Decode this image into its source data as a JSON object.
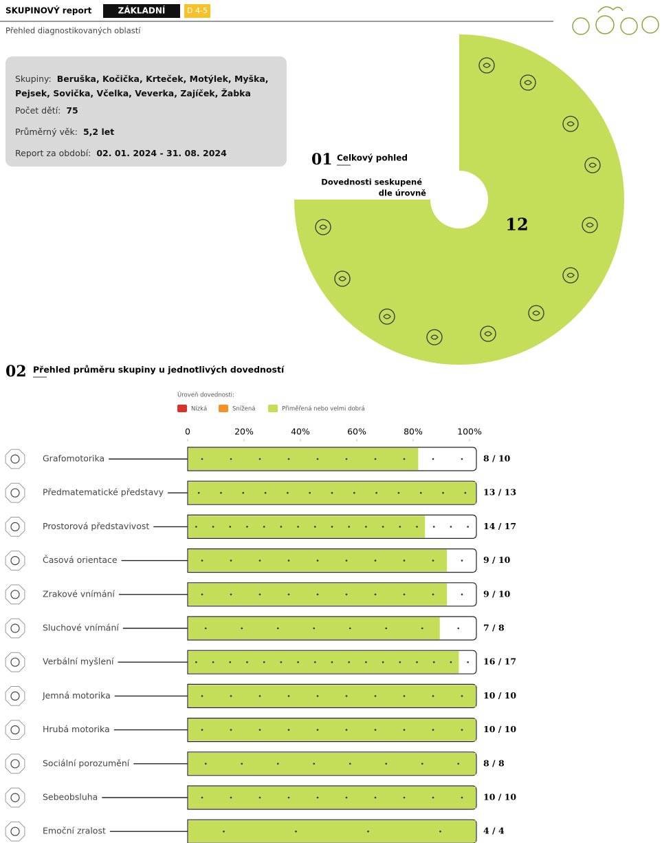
{
  "header": {
    "brand": "SKUPINOVÝ report",
    "badge": "ZÁKLADNÍ",
    "age_group": "D 4-5",
    "subtitle": "Přehled diagnostikovaných oblastí"
  },
  "info": {
    "groups_label": "Skupiny:",
    "groups": "Beruška, Kočička, Krteček, Motýlek, Myška, Pejsek, Sovička, Včelka, Veverka, Zajíček, Žabka",
    "children_label": "Počet dětí:",
    "children": 75,
    "age_label": "Průměrný věk:",
    "age": "5,2 let",
    "period_label": "Report za období:",
    "period": "02. 01. 2024 - 31. 08. 2024"
  },
  "overview": {
    "number": "01",
    "title": "Celkový pohled",
    "subtitle_line1": "Dovednosti seskupené",
    "subtitle_line2": "dle úrovně",
    "count": 12,
    "color": "#c5de5a"
  },
  "skills": {
    "number": "02",
    "title": "Přehled průměru skupiny u jednotlivých dovedností",
    "legend_title": "Úroveň dovednosti:",
    "legend": [
      {
        "name": "Nízká",
        "color": "#d9342b"
      },
      {
        "name": "Snížená",
        "color": "#f39324"
      },
      {
        "name": "Přiměřená nebo velmi dobrá",
        "color": "#c5de5a"
      }
    ],
    "ticks": [
      0,
      {
        "value": 20,
        "label": "20%"
      },
      {
        "value": 40,
        "label": "40%"
      },
      {
        "value": 60,
        "label": "60%"
      },
      {
        "value": 80,
        "label": "80%"
      },
      {
        "value": 100,
        "label": "100%"
      }
    ],
    "bar_color": "#c5de5a",
    "rows": [
      {
        "name": "Grafomotorika",
        "score": 8,
        "max": 10,
        "label": "8 / 10"
      },
      {
        "name": "Předmatematické představy",
        "score": 13,
        "max": 13,
        "label": "13 / 13"
      },
      {
        "name": "Prostorová představivost",
        "score": 14,
        "max": 17,
        "label": "14 / 17"
      },
      {
        "name": "Časová orientace",
        "score": 9,
        "max": 10,
        "label": "9 / 10"
      },
      {
        "name": "Zrakové vnímání",
        "score": 9,
        "max": 10,
        "label": "9 / 10"
      },
      {
        "name": "Sluchové vnímání",
        "score": 7,
        "max": 8,
        "label": "7 / 8"
      },
      {
        "name": "Verbální myšlení",
        "score": 16,
        "max": 17,
        "label": "16 / 17"
      },
      {
        "name": "Jemná motorika",
        "score": 10,
        "max": 10,
        "label": "10 / 10"
      },
      {
        "name": "Hrubá motorika",
        "score": 10,
        "max": 10,
        "label": "10 / 10"
      },
      {
        "name": "Sociální porozumění",
        "score": 8,
        "max": 8,
        "label": "8 / 8"
      },
      {
        "name": "Sebeobsluha",
        "score": 10,
        "max": 10,
        "label": "10 / 10"
      },
      {
        "name": "Emoční zralost",
        "score": 4,
        "max": 4,
        "label": "4 / 4"
      }
    ]
  }
}
